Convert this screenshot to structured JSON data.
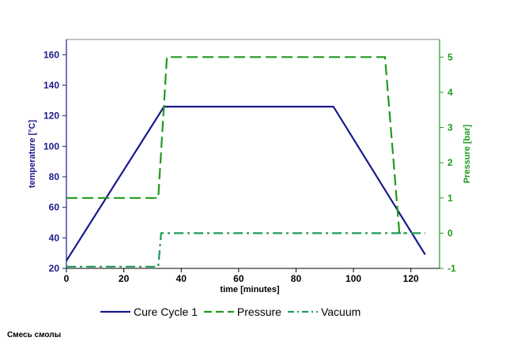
{
  "chart_data": {
    "type": "line",
    "xlabel": "time [minutes]",
    "x_ticks": [
      0,
      20,
      40,
      60,
      80,
      100,
      120
    ],
    "xlim": [
      0,
      130
    ],
    "ylabel_left": "temperature [°C]",
    "y_left_ticks": [
      20,
      40,
      60,
      80,
      100,
      120,
      140,
      160
    ],
    "ylim_left": [
      20,
      170
    ],
    "ylabel_right": "Pressure [bar]",
    "y_right_ticks": [
      -1,
      0,
      1,
      2,
      3,
      4,
      5
    ],
    "ylim_right": [
      -1,
      5.5
    ],
    "grid": false,
    "legend_position": "bottom",
    "series": [
      {
        "name": "Cure Cycle 1",
        "axis": "left",
        "style": "solid",
        "color": "#1a1a8c",
        "x": [
          0,
          34,
          93,
          125
        ],
        "y": [
          25,
          126,
          126,
          29
        ]
      },
      {
        "name": "Pressure",
        "axis": "right",
        "style": "dashed",
        "color": "#1e9a1e",
        "x": [
          0,
          32,
          35,
          111,
          116,
          118
        ],
        "y": [
          1,
          1,
          5,
          5,
          0,
          0
        ]
      },
      {
        "name": "Vacuum",
        "axis": "right",
        "style": "dashdot",
        "color": "#1e9a5a",
        "x": [
          0,
          32,
          33,
          125
        ],
        "y": [
          -0.95,
          -0.95,
          0,
          0
        ]
      }
    ]
  },
  "colors": {
    "left_axis": "#1a1a8c",
    "right_axis": "#1e9a1e",
    "frame": "#888888"
  },
  "caption": "Смесь смолы"
}
